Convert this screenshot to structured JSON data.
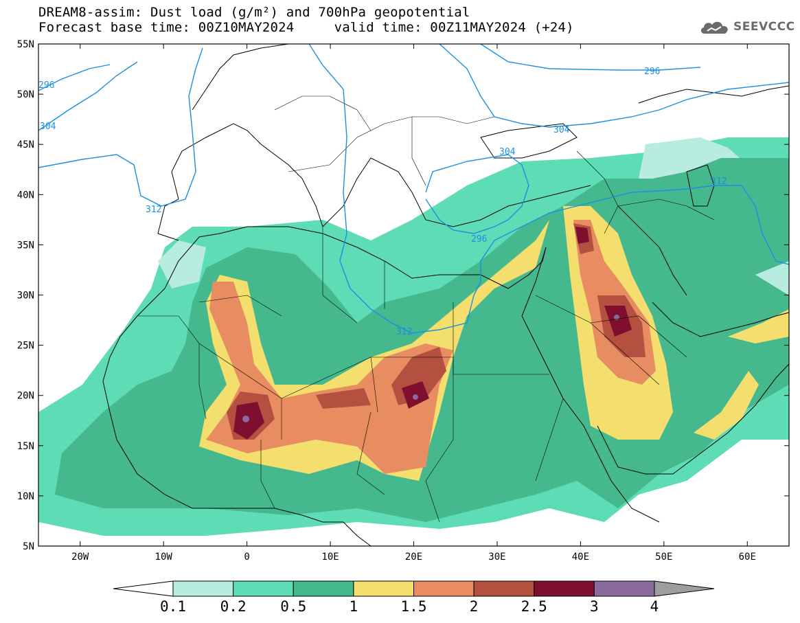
{
  "title": {
    "line1": "DREAM8-assim: Dust load (g/m²) and 700hPa geopotential",
    "line2": "Forecast base time: 00Z10MAY2024     valid time: 00Z11MAY2024 (+24)"
  },
  "logo": {
    "text": "SEEVCCC",
    "icon": "cloud-icon"
  },
  "map": {
    "lat_range": [
      5,
      55
    ],
    "lon_range": [
      -25,
      65
    ],
    "lat_ticks": [
      "55N",
      "50N",
      "45N",
      "40N",
      "35N",
      "30N",
      "25N",
      "20N",
      "15N",
      "10N",
      "5N"
    ],
    "lon_ticks": [
      "20W",
      "10W",
      "0",
      "10E",
      "20E",
      "30E",
      "40E",
      "50E",
      "60E"
    ],
    "contour_labels": [
      "296",
      "304",
      "312",
      "304",
      "304",
      "296",
      "312",
      "312",
      "296"
    ]
  },
  "legend": {
    "labels": [
      "0.1",
      "0.2",
      "0.5",
      "1",
      "1.5",
      "2",
      "2.5",
      "3",
      "4"
    ],
    "colors": [
      "#ffffff",
      "#b9ece0",
      "#5ddcb6",
      "#46b88e",
      "#f4df6e",
      "#e78d61",
      "#b4503f",
      "#7e0f2f",
      "#8b6a9e",
      "#9e9e9e"
    ]
  },
  "colors": {
    "contour": "#1a8fe3",
    "coast": "#000000"
  }
}
